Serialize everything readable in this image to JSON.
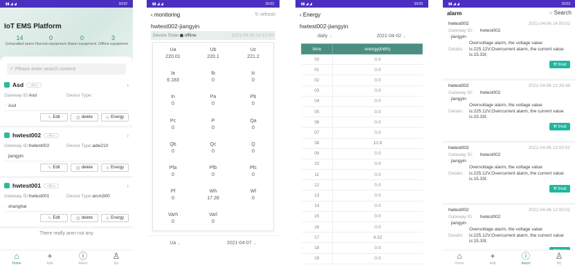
{
  "status": {
    "time1": "10:02",
    "time2": "10:02",
    "time3": "10:03",
    "time4": "10:03"
  },
  "home": {
    "title": "IoT EMS Platform",
    "stats": [
      {
        "value": "14",
        "label": "Unhandled alarm"
      },
      {
        "value": "0",
        "label": "Normal equipment"
      },
      {
        "value": "0",
        "label": "Alarm equipment"
      },
      {
        "value": "3",
        "label": "Offline equipment"
      }
    ],
    "search_placeholder": "Please enter search content",
    "gateway_label": "Gateway ID:",
    "type_label": "Device Type:",
    "devices": [
      {
        "name": "Asd",
        "status": "offline",
        "gateway": "Asd",
        "type": "",
        "location": "Asd"
      },
      {
        "name": "hwtest002",
        "status": "offline",
        "gateway": "hwtest002",
        "type": "adw210",
        "location": "jiangyin"
      },
      {
        "name": "hwtest001",
        "status": "offline",
        "gateway": "hwtest001",
        "type": "arcm300",
        "location": "shanghai"
      }
    ],
    "buttons": {
      "edit": "Edit",
      "delete": "delete",
      "energy": "Energy"
    },
    "end_text": "There really aren not any"
  },
  "tabs": [
    {
      "label": "Home",
      "icon": "home-icon"
    },
    {
      "label": "Add",
      "icon": "plus-icon"
    },
    {
      "label": "Alarm",
      "icon": "alert-icon"
    },
    {
      "label": "My",
      "icon": "user-icon"
    }
  ],
  "monitoring": {
    "back": "monitoring",
    "refresh": "refresh",
    "device": "hwtest002-jiangyin",
    "state_label": "Device State:",
    "state": "offline",
    "time": "2021-04-06 14:15:00",
    "params": [
      [
        "Ua",
        "220.01"
      ],
      [
        "Ub",
        "220.1"
      ],
      [
        "Uc",
        "221.2"
      ],
      [
        "Ia",
        "6.183"
      ],
      [
        "Ib",
        "0"
      ],
      [
        "Ic",
        "0"
      ],
      [
        "In",
        "0"
      ],
      [
        "Pa",
        "0"
      ],
      [
        "Pb",
        "0"
      ],
      [
        "Pc",
        "0"
      ],
      [
        "P",
        "0"
      ],
      [
        "Qa",
        "0"
      ],
      [
        "Qb",
        "0"
      ],
      [
        "Qc",
        "0"
      ],
      [
        "Q",
        "0"
      ],
      [
        "Pfa",
        "0"
      ],
      [
        "Pfb",
        "0"
      ],
      [
        "Pfc",
        "0"
      ],
      [
        "Pf",
        "0"
      ],
      [
        "Wh",
        "17.28"
      ],
      [
        "Wl",
        "0"
      ],
      [
        "Varh",
        "0"
      ],
      [
        "Varl",
        "0"
      ]
    ],
    "param_select": "Ua",
    "date_select": "2021-04-07"
  },
  "energy": {
    "back": "Energy",
    "device": "hwtest002-jiangyin",
    "period": "daily",
    "date": "2021-04-02",
    "headers": [
      "time",
      "energy(kWh)"
    ],
    "rows": [
      [
        "00",
        "0.0"
      ],
      [
        "01",
        "0.0"
      ],
      [
        "02",
        "0.0"
      ],
      [
        "03",
        "0.0"
      ],
      [
        "04",
        "0.0"
      ],
      [
        "05",
        "0.0"
      ],
      [
        "06",
        "0.0"
      ],
      [
        "07",
        "0.0"
      ],
      [
        "08",
        "10.8"
      ],
      [
        "09",
        "0.0"
      ],
      [
        "10",
        "0.0"
      ],
      [
        "11",
        "0.0"
      ],
      [
        "12",
        "0.0"
      ],
      [
        "13",
        "0.0"
      ],
      [
        "14",
        "0.0"
      ],
      [
        "15",
        "0.0"
      ],
      [
        "16",
        "0.0"
      ],
      [
        "17",
        "4.32"
      ],
      [
        "18",
        "0.0"
      ],
      [
        "19",
        "0.0"
      ]
    ]
  },
  "alarm": {
    "title": "alarm",
    "search": "Search",
    "gateway_label": "Gateway ID:",
    "details_label": "Details:",
    "treat": "treat",
    "items": [
      {
        "name": "hwtest002",
        "time": "2021-04-06 14:00:02",
        "gateway": "hwtest002",
        "location": "jiangyin",
        "details": "Overvoltage alarm, the voltage value is:225.12V;Overcurrent alarm, the current value is:15.33I;"
      },
      {
        "name": "hwtest002",
        "time": "2021-04-06 13:39:48",
        "gateway": "hwtest002",
        "location": "jiangyin",
        "details": "Overvoltage alarm, the voltage value is:225.12V;Overcurrent alarm, the current value is:15.33I;"
      },
      {
        "name": "hwtest002",
        "time": "2021-04-06 13:00:02",
        "gateway": "hwtest002",
        "location": "jiangyin",
        "details": "Overvoltage alarm, the voltage value is:225.12V;Overcurrent alarm, the current value is:15.33I;"
      },
      {
        "name": "hwtest002",
        "time": "2021-04-06 12:00:02",
        "gateway": "hwtest002",
        "location": "jiangyin",
        "details": "Overvoltage alarm, the voltage value is:225.12V;Overcurrent alarm, the current value is:15.33I;"
      }
    ]
  },
  "colors": {
    "status_bar": "#4b2fc0",
    "accent": "#21b69d",
    "table_header": "#4b8e80"
  }
}
